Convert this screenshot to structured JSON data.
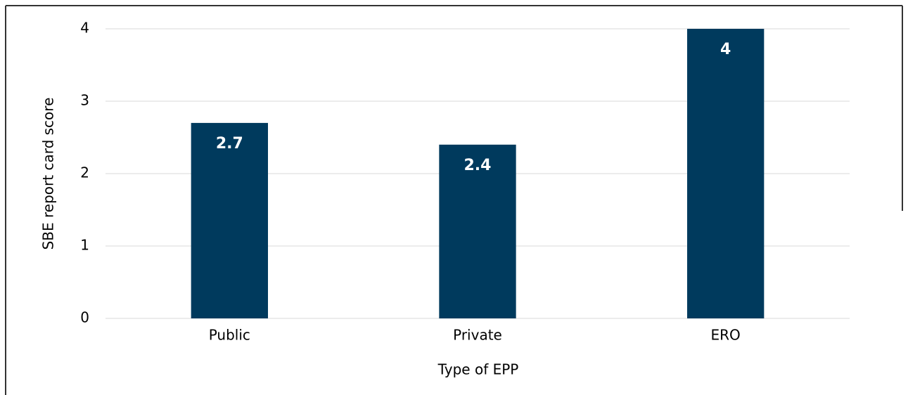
{
  "chart_data": {
    "type": "bar",
    "x_label": "Type of EPP",
    "y_label": "SBE report card score",
    "categories": [
      "Public",
      "Private",
      "ERO"
    ],
    "values": [
      2.7,
      2.4,
      4
    ],
    "color": "#003a5d",
    "ylim": [
      0,
      4
    ],
    "yticks": [
      0,
      1,
      2,
      3,
      4
    ],
    "grid": true
  }
}
